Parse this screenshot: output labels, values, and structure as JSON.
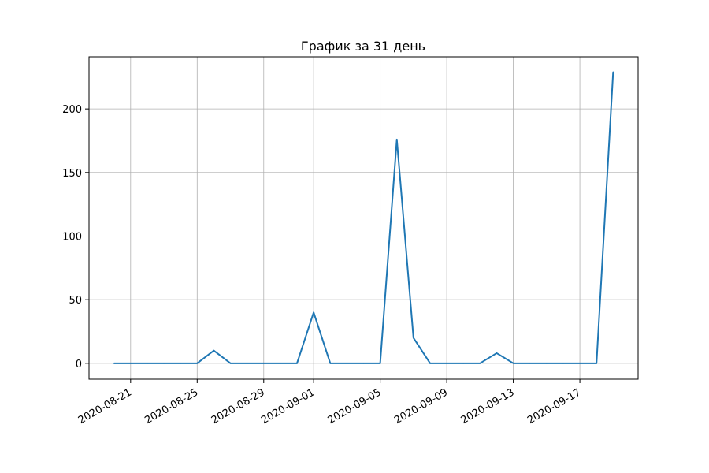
{
  "chart_data": {
    "type": "line",
    "title": "График за 31 день",
    "xlabel": "",
    "ylabel": "",
    "x": [
      "2020-08-20",
      "2020-08-21",
      "2020-08-22",
      "2020-08-23",
      "2020-08-24",
      "2020-08-25",
      "2020-08-26",
      "2020-08-27",
      "2020-08-28",
      "2020-08-29",
      "2020-08-30",
      "2020-08-31",
      "2020-09-01",
      "2020-09-02",
      "2020-09-03",
      "2020-09-04",
      "2020-09-05",
      "2020-09-06",
      "2020-09-07",
      "2020-09-08",
      "2020-09-09",
      "2020-09-10",
      "2020-09-11",
      "2020-09-12",
      "2020-09-13",
      "2020-09-14",
      "2020-09-15",
      "2020-09-16",
      "2020-09-17",
      "2020-09-18",
      "2020-09-19"
    ],
    "series": [
      {
        "values": [
          0,
          0,
          0,
          0,
          0,
          0,
          10,
          0,
          0,
          0,
          0,
          0,
          40,
          0,
          0,
          0,
          0,
          176,
          20,
          0,
          0,
          0,
          0,
          8,
          0,
          0,
          0,
          0,
          0,
          0,
          229
        ],
        "color": "#1f77b4"
      }
    ],
    "xlim": [
      "2020-08-18.5",
      "2020-09-20.5"
    ],
    "ylim": [
      -12.5,
      241
    ],
    "x_ticks": [
      "2020-08-21",
      "2020-08-25",
      "2020-08-29",
      "2020-09-01",
      "2020-09-05",
      "2020-09-09",
      "2020-09-13",
      "2020-09-17"
    ],
    "y_ticks": [
      0,
      50,
      100,
      150,
      200
    ],
    "grid": true,
    "legend": "none"
  }
}
